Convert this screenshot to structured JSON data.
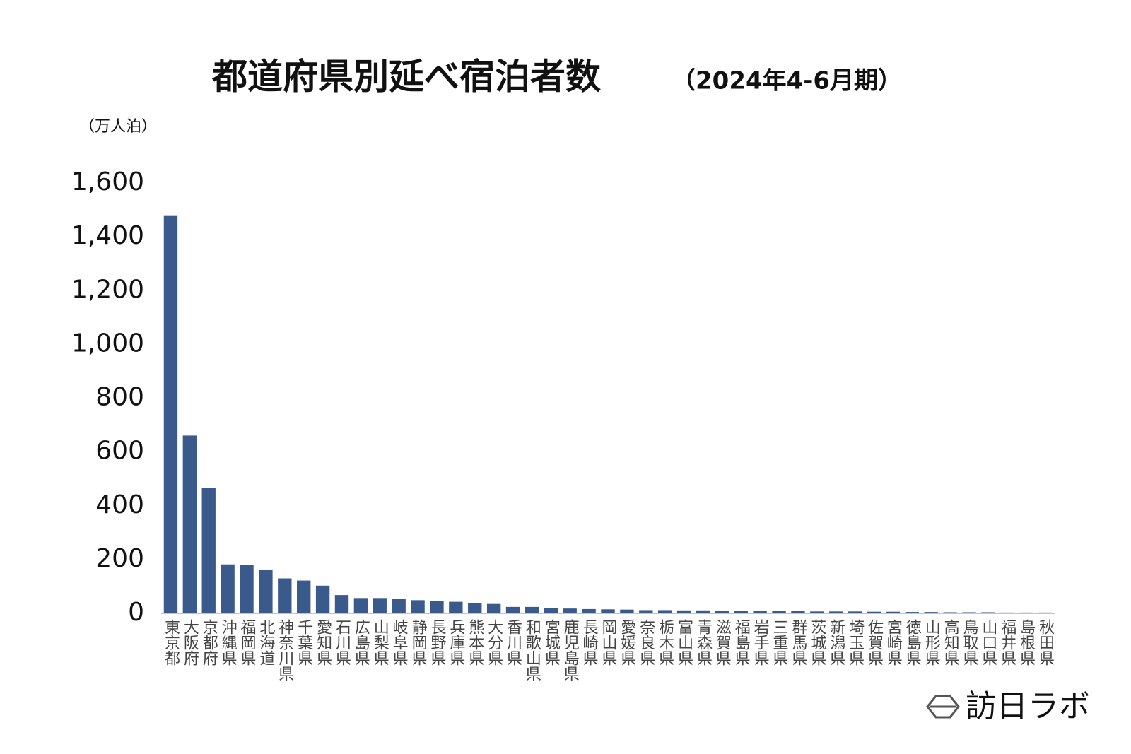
{
  "chart_data": {
    "type": "bar",
    "title": "都道府県別延べ宿泊者数",
    "subtitle": "（2024年4-6月期）",
    "y_axis_label": "（万人泊）",
    "brand": "訪日ラボ",
    "categories": [
      "東京都",
      "大阪府",
      "京都府",
      "沖縄県",
      "福岡県",
      "北海道",
      "神奈川県",
      "千葉県",
      "愛知県",
      "石川県",
      "広島県",
      "山梨県",
      "岐阜県",
      "静岡県",
      "長野県",
      "兵庫県",
      "熊本県",
      "大分県",
      "香川県",
      "和歌山県",
      "宮城県",
      "鹿児島県",
      "長崎県",
      "岡山県",
      "愛媛県",
      "奈良県",
      "栃木県",
      "富山県",
      "青森県",
      "滋賀県",
      "福島県",
      "岩手県",
      "三重県",
      "群馬県",
      "茨城県",
      "新潟県",
      "埼玉県",
      "佐賀県",
      "宮崎県",
      "徳島県",
      "山形県",
      "高知県",
      "鳥取県",
      "山口県",
      "福井県",
      "島根県",
      "秋田県"
    ],
    "values": [
      1480,
      661,
      466,
      182,
      179,
      163,
      130,
      122,
      103,
      68,
      57,
      57,
      54,
      49,
      46,
      43,
      38,
      35,
      24,
      24,
      19,
      18,
      16,
      15,
      14,
      12,
      12,
      11,
      11,
      10,
      9,
      9,
      8,
      8,
      7,
      7,
      7,
      6,
      6,
      5,
      5,
      4,
      4,
      4,
      3,
      3,
      3
    ],
    "color": "#3b5a8c",
    "ylim": [
      0,
      1600
    ],
    "yticks": [
      0,
      200,
      400,
      600,
      800,
      {
        "value": 1000,
        "label": "1,000"
      },
      {
        "value": 1200,
        "label": "1,200"
      },
      {
        "value": 1400,
        "label": "1,400"
      },
      {
        "value": 1600,
        "label": "1,600"
      }
    ],
    "grid": false
  }
}
